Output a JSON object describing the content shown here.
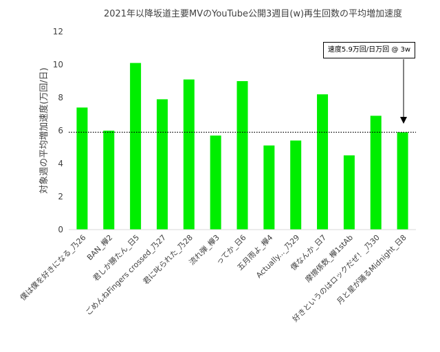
{
  "chart_data": {
    "type": "bar",
    "title": "2021年以降坂道主要MVのYouTube公開3週目(w)再生回数の平均増加速度",
    "xlabel": "",
    "ylabel": "対象週の平均増加速度(万回/日)",
    "ylim": [
      0,
      12
    ],
    "yticks": [
      0,
      2,
      4,
      6,
      8,
      10,
      12
    ],
    "categories": [
      "僕は僕を好きになる_乃26",
      "BAN_欅2",
      "君しか勝たん_日5",
      "ごめんねFingers crossed_乃27",
      "君に叱られた_乃28",
      "流れ弾_欅3",
      "ってか_日6",
      "五月雨よ_欅4",
      "Actually..._乃29",
      "僕なんか_日7",
      "摩擦係数_欅1stAb",
      "好きというのはロックだぜ！_乃30",
      "月と星が踊るMidnight_日8"
    ],
    "values": [
      7.4,
      6.0,
      10.1,
      7.9,
      9.1,
      5.7,
      9.0,
      5.1,
      5.4,
      8.2,
      4.5,
      6.9,
      5.9
    ],
    "bar_color": "#00ee00",
    "reference_line": {
      "value": 5.9,
      "style": "dotted"
    },
    "annotation": "速度5.9万回/日万回 @ 3w",
    "grid": false,
    "legend": "none"
  }
}
